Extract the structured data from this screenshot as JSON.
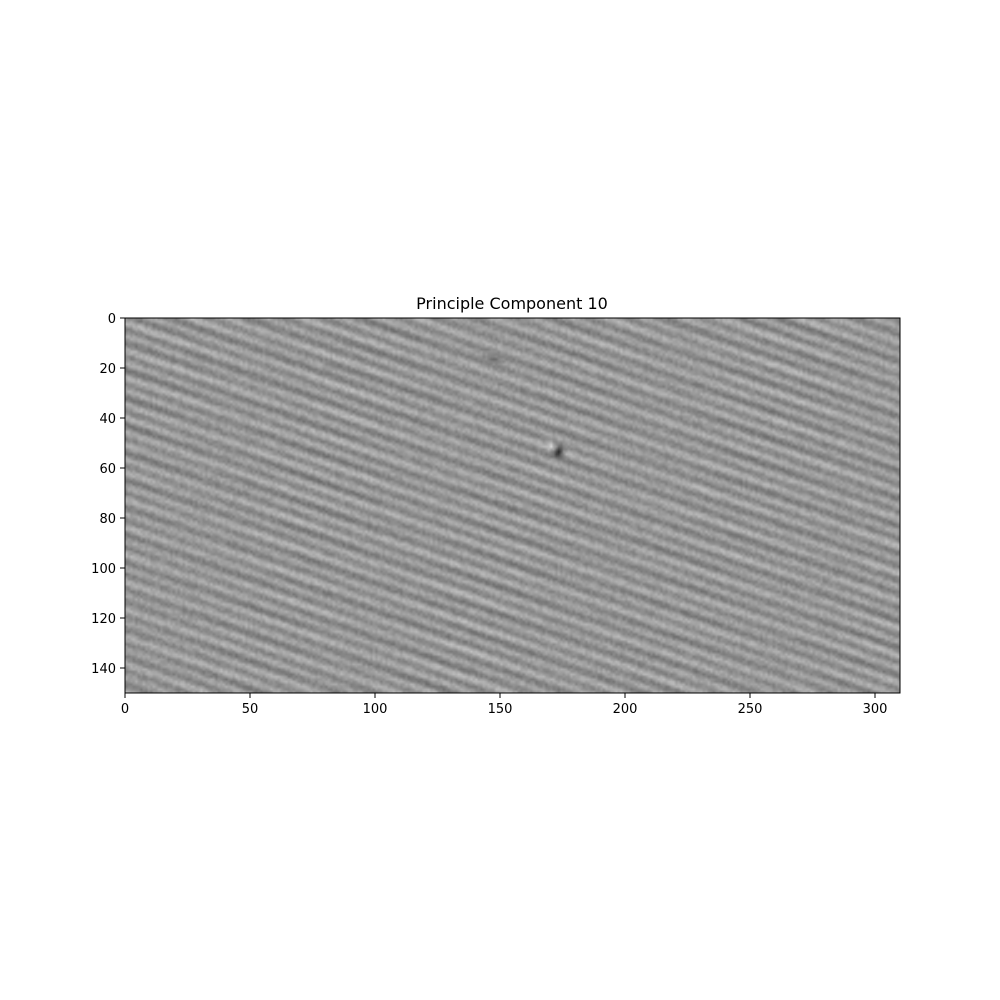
{
  "chart_data": {
    "type": "heatmap",
    "title": "Principle Component 10",
    "xlabel": "",
    "ylabel": "",
    "colormap": "gray",
    "grid": false,
    "x_range": [
      0,
      310
    ],
    "y_range": [
      0,
      150
    ],
    "y_inverted": true,
    "x_ticks": [
      0,
      50,
      100,
      150,
      200,
      250,
      300
    ],
    "x_tick_labels": [
      "0",
      "50",
      "100",
      "150",
      "200",
      "250",
      "300"
    ],
    "y_ticks": [
      0,
      20,
      40,
      60,
      80,
      100,
      120,
      140
    ],
    "y_tick_labels": [
      "0",
      "20",
      "40",
      "60",
      "80",
      "100",
      "120",
      "140"
    ],
    "features": [
      {
        "name": "diagonal stripes",
        "description": "dense dark/light stripes running down-right, intensity varying across image"
      },
      {
        "name": "dark spot",
        "x": 173,
        "y": 53
      },
      {
        "name": "dark streak",
        "x": 147,
        "y": 16
      }
    ]
  }
}
